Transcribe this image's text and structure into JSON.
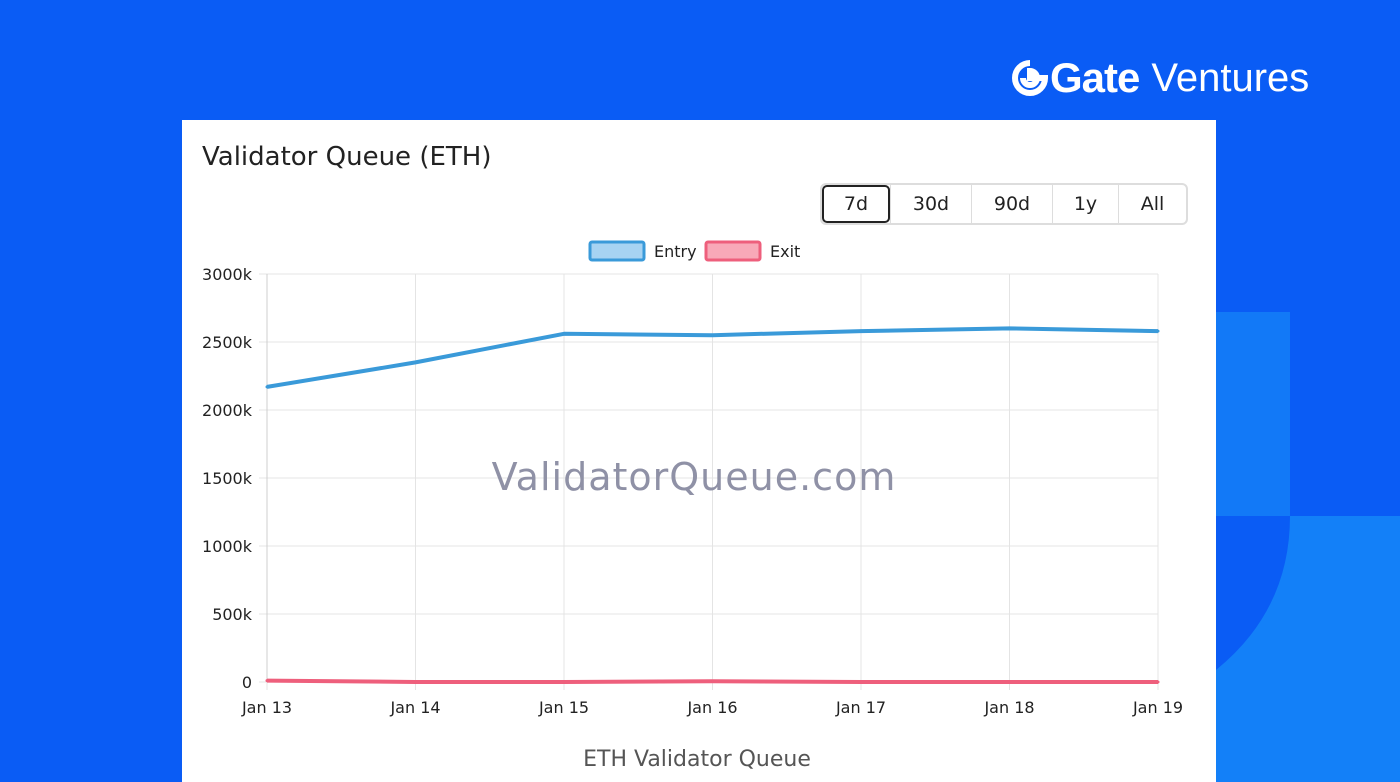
{
  "brand": {
    "name": "Gate",
    "sub": "Ventures",
    "icon": "gate-logo-icon",
    "color": "#ffffff",
    "background": "#0a5cf5"
  },
  "card": {
    "title": "Validator Queue (ETH)",
    "ranges": [
      {
        "label": "7d",
        "active": true
      },
      {
        "label": "30d",
        "active": false
      },
      {
        "label": "90d",
        "active": false
      },
      {
        "label": "1y",
        "active": false
      },
      {
        "label": "All",
        "active": false
      }
    ]
  },
  "chart_data": {
    "type": "line",
    "title": "",
    "xlabel": "ETH Validator Queue",
    "ylabel": "",
    "watermark": "ValidatorQueue.com",
    "categories": [
      "Jan 13",
      "Jan 14",
      "Jan 15",
      "Jan 16",
      "Jan 17",
      "Jan 18",
      "Jan 19"
    ],
    "y_ticks": [
      "3000k",
      "2500k",
      "2000k",
      "1500k",
      "1000k",
      "500k",
      "0"
    ],
    "ylim": [
      0,
      3000
    ],
    "grid": true,
    "legend_position": "top-center",
    "series": [
      {
        "name": "Entry",
        "color": "#3a9ad9",
        "fill": "#a7d3f2",
        "values": [
          2170,
          2350,
          2560,
          2550,
          2580,
          2600,
          2580
        ]
      },
      {
        "name": "Exit",
        "color": "#ee5f7c",
        "fill": "#f8a9b8",
        "values": [
          10,
          0,
          0,
          5,
          0,
          0,
          0
        ]
      }
    ]
  }
}
